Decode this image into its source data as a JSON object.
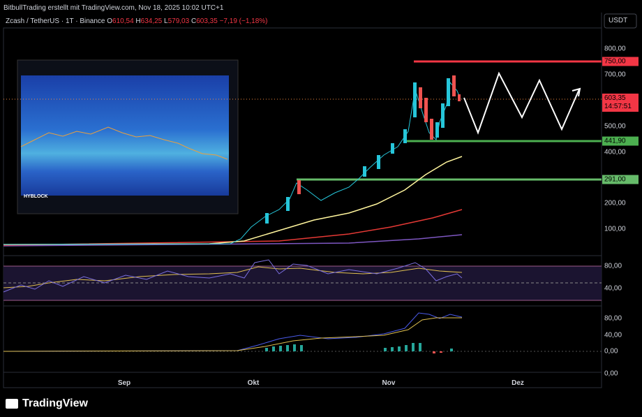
{
  "header": {
    "attribution": "BitbullTrading erstellt mit TradingView.com, Nov 18, 2025 10:02 UTC+1"
  },
  "symbol": {
    "name": "Zcash / TetherUS · 1T · Binance",
    "ohlc": [
      {
        "label": "O",
        "value": "610,54"
      },
      {
        "label": "H",
        "value": "634,25"
      },
      {
        "label": "L",
        "value": "579,03"
      },
      {
        "label": "C",
        "value": "603,35"
      }
    ],
    "change": "−7,19 (−1,18%)"
  },
  "currency": "USDT",
  "price_axis": [
    "800,00",
    "700,00",
    "500,00",
    "400,00",
    "200,00",
    "100,00"
  ],
  "badges": {
    "resistance": "750,00",
    "last_price": "603,35",
    "countdown": "14:57:51",
    "support_1": "441,90",
    "support_2": "291,00"
  },
  "rsi_axis": [
    "80,00",
    "40,00"
  ],
  "macd_axis": [
    "80,00",
    "40,00",
    "0,00",
    "0,00"
  ],
  "time_axis": [
    "Sep",
    "Okt",
    "Nov",
    "Dez"
  ],
  "inset": {
    "label": "HYBLOCK"
  },
  "footer": {
    "brand": "TradingView"
  }
}
